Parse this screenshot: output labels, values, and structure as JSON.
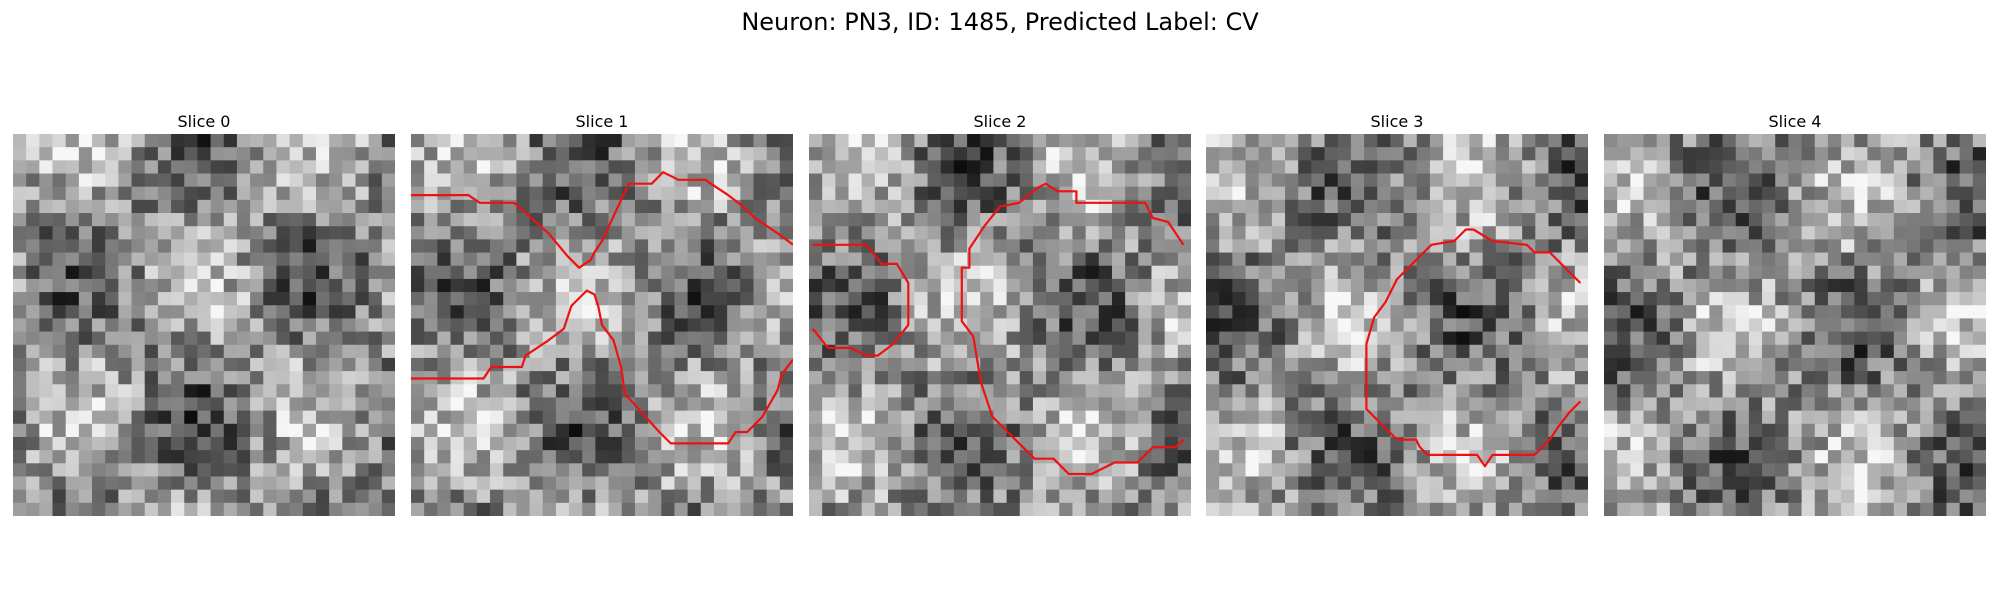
{
  "title": "Neuron: PN3, ID: 1485, Predicted Label: CV",
  "panels": [
    {
      "label": "Slice 0",
      "contours": []
    },
    {
      "label": "Slice 1",
      "contours": [
        [
          [
            0,
            1.6
          ],
          [
            1.5,
            1.6
          ],
          [
            1.8,
            1.8
          ],
          [
            2.7,
            1.8
          ],
          [
            3.6,
            2.6
          ],
          [
            4.1,
            3.2
          ],
          [
            4.4,
            3.5
          ],
          [
            4.7,
            3.3
          ],
          [
            4.8,
            3.1
          ],
          [
            5.0,
            2.8
          ],
          [
            5.7,
            1.3
          ],
          [
            6.3,
            1.3
          ],
          [
            6.6,
            1.0
          ],
          [
            7.0,
            1.2
          ],
          [
            7.7,
            1.2
          ],
          [
            8.3,
            1.6
          ],
          [
            8.7,
            1.9
          ],
          [
            9.0,
            2.2
          ],
          [
            9.6,
            2.6
          ],
          [
            10.0,
            2.9
          ]
        ],
        [
          [
            0,
            6.4
          ],
          [
            1.9,
            6.4
          ],
          [
            2.1,
            6.1
          ],
          [
            2.9,
            6.1
          ],
          [
            3.0,
            5.8
          ],
          [
            3.6,
            5.4
          ],
          [
            4.0,
            5.1
          ],
          [
            4.2,
            4.5
          ],
          [
            4.6,
            4.1
          ],
          [
            4.8,
            4.2
          ],
          [
            4.9,
            4.5
          ],
          [
            5.0,
            5.0
          ],
          [
            5.3,
            5.4
          ],
          [
            5.5,
            6.1
          ],
          [
            5.6,
            6.8
          ],
          [
            6.5,
            7.8
          ],
          [
            6.8,
            8.1
          ],
          [
            8.3,
            8.1
          ],
          [
            8.5,
            7.8
          ],
          [
            8.8,
            7.8
          ],
          [
            9.2,
            7.4
          ],
          [
            9.6,
            6.7
          ],
          [
            9.7,
            6.3
          ],
          [
            10.0,
            5.9
          ]
        ]
      ]
    },
    {
      "label": "Slice 2",
      "contours": [
        [
          [
            0.1,
            2.9
          ],
          [
            1.5,
            2.9
          ],
          [
            1.9,
            3.4
          ],
          [
            2.3,
            3.4
          ],
          [
            2.6,
            3.9
          ],
          [
            2.6,
            5.0
          ],
          [
            2.2,
            5.5
          ],
          [
            1.8,
            5.8
          ],
          [
            1.5,
            5.8
          ],
          [
            1.1,
            5.6
          ],
          [
            0.5,
            5.6
          ],
          [
            0.1,
            5.1
          ]
        ],
        [
          [
            9.8,
            2.9
          ],
          [
            9.4,
            2.3
          ],
          [
            9.0,
            2.2
          ],
          [
            8.8,
            1.8
          ],
          [
            8.5,
            1.8
          ],
          [
            7.0,
            1.8
          ],
          [
            7.0,
            1.5
          ],
          [
            6.5,
            1.5
          ],
          [
            6.2,
            1.3
          ],
          [
            6.0,
            1.4
          ],
          [
            5.5,
            1.8
          ],
          [
            5.0,
            1.9
          ],
          [
            4.6,
            2.4
          ],
          [
            4.2,
            3.0
          ],
          [
            4.2,
            3.5
          ],
          [
            4.0,
            3.5
          ],
          [
            4.0,
            4.9
          ],
          [
            4.3,
            5.3
          ],
          [
            4.5,
            6.5
          ],
          [
            4.8,
            7.4
          ],
          [
            5.1,
            7.7
          ],
          [
            5.3,
            7.9
          ],
          [
            5.6,
            8.2
          ],
          [
            5.9,
            8.5
          ],
          [
            6.4,
            8.5
          ],
          [
            6.8,
            8.9
          ],
          [
            7.4,
            8.9
          ],
          [
            8.0,
            8.6
          ],
          [
            8.6,
            8.6
          ],
          [
            9.0,
            8.2
          ],
          [
            9.6,
            8.2
          ],
          [
            9.8,
            8.0
          ]
        ]
      ]
    },
    {
      "label": "Slice 3",
      "contours": [
        [
          [
            9.8,
            3.9
          ],
          [
            9.0,
            3.1
          ],
          [
            8.6,
            3.1
          ],
          [
            8.4,
            2.9
          ],
          [
            7.5,
            2.8
          ],
          [
            7.0,
            2.5
          ],
          [
            6.8,
            2.5
          ],
          [
            6.5,
            2.8
          ],
          [
            5.9,
            2.9
          ],
          [
            5.4,
            3.4
          ],
          [
            5.0,
            3.8
          ],
          [
            4.7,
            4.4
          ],
          [
            4.4,
            4.8
          ],
          [
            4.2,
            5.5
          ],
          [
            4.2,
            7.2
          ],
          [
            4.6,
            7.6
          ],
          [
            5.0,
            8.0
          ],
          [
            5.5,
            8.0
          ],
          [
            5.6,
            8.2
          ],
          [
            5.8,
            8.4
          ],
          [
            7.1,
            8.4
          ],
          [
            7.3,
            8.7
          ],
          [
            7.5,
            8.4
          ],
          [
            8.6,
            8.4
          ],
          [
            9.0,
            8.0
          ],
          [
            9.2,
            7.7
          ],
          [
            9.5,
            7.3
          ],
          [
            9.8,
            7.0
          ]
        ]
      ]
    },
    {
      "label": "Slice 4",
      "contours": []
    }
  ],
  "colors": {
    "contour": "#ee1111"
  }
}
